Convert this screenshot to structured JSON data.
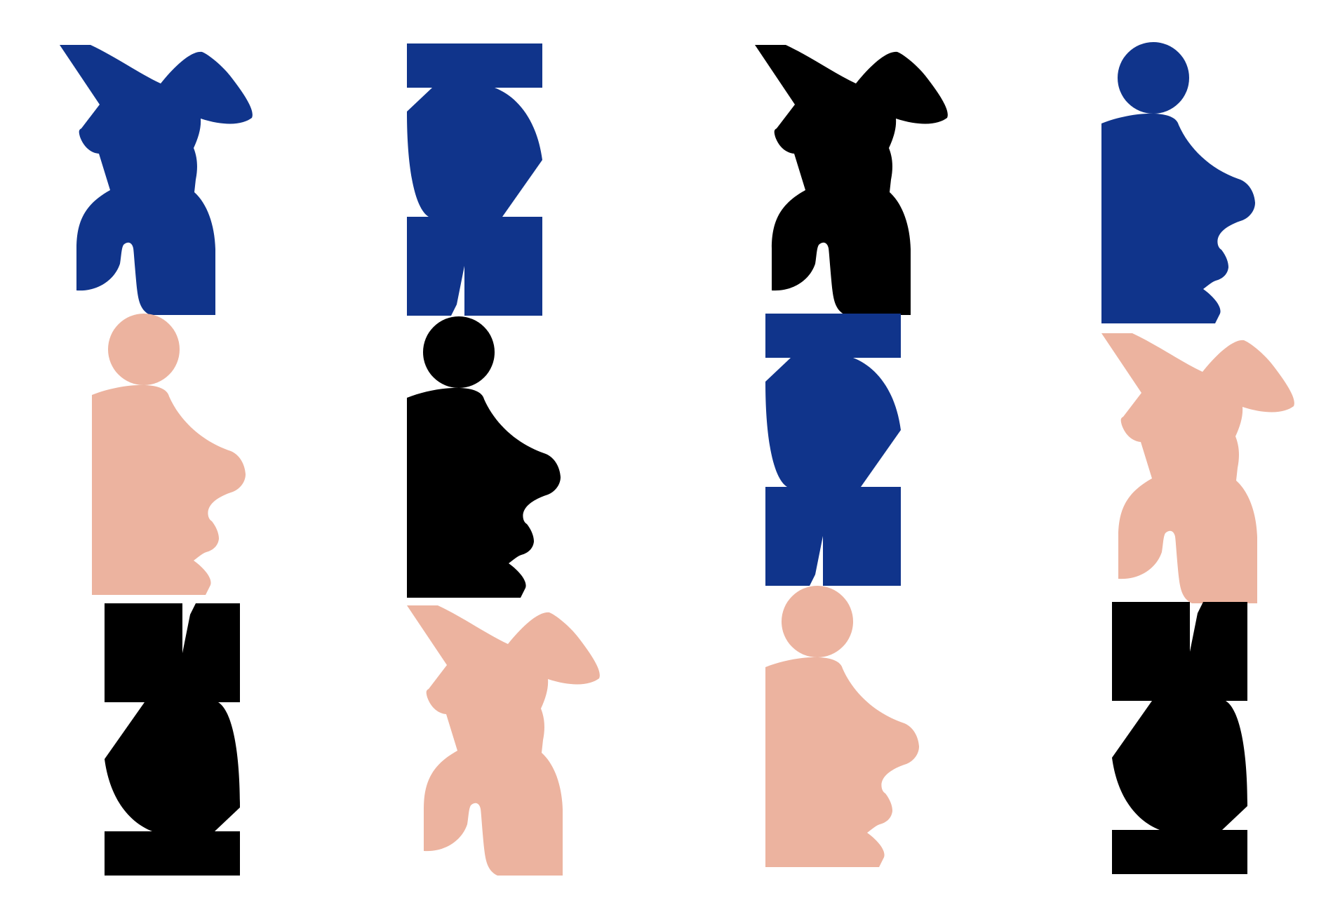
{
  "palette": {
    "blue": "#10348b",
    "black": "#000000",
    "peach": "#ecb39f",
    "background": "#ffffff"
  },
  "shape_types": [
    "figure",
    "column",
    "bust"
  ],
  "grid": {
    "rows": 3,
    "columns": 4,
    "cells": [
      {
        "row": 1,
        "col": 1,
        "shape": "figure",
        "color": "blue"
      },
      {
        "row": 1,
        "col": 2,
        "shape": "column",
        "color": "blue",
        "orientation": "upright"
      },
      {
        "row": 1,
        "col": 3,
        "shape": "figure",
        "color": "black"
      },
      {
        "row": 1,
        "col": 4,
        "shape": "bust",
        "color": "blue"
      },
      {
        "row": 2,
        "col": 1,
        "shape": "bust",
        "color": "peach"
      },
      {
        "row": 2,
        "col": 2,
        "shape": "bust",
        "color": "black"
      },
      {
        "row": 2,
        "col": 3,
        "shape": "column",
        "color": "blue",
        "orientation": "upright"
      },
      {
        "row": 2,
        "col": 4,
        "shape": "figure",
        "color": "peach"
      },
      {
        "row": 3,
        "col": 1,
        "shape": "column",
        "color": "black",
        "orientation": "inverted"
      },
      {
        "row": 3,
        "col": 2,
        "shape": "figure",
        "color": "peach"
      },
      {
        "row": 3,
        "col": 3,
        "shape": "bust",
        "color": "peach"
      },
      {
        "row": 3,
        "col": 4,
        "shape": "column",
        "color": "black",
        "orientation": "inverted"
      }
    ]
  }
}
